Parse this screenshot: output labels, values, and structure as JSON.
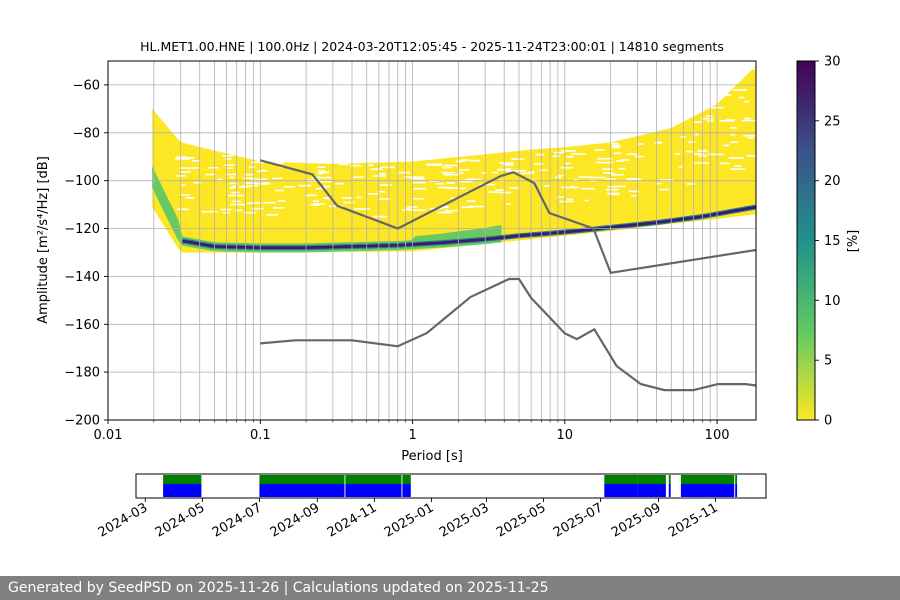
{
  "chart_data": {
    "type": "heatmap",
    "title": "HL.MET1.00.HNE | 100.0Hz | 2024-03-20T12:05:45 - 2025-11-24T23:00:01 | 14810 segments",
    "xlabel": "Period [s]",
    "ylabel": "Amplitude [m²/s⁴/Hz] [dB]",
    "x_scale": "log",
    "xlim": [
      0.01,
      180
    ],
    "ylim": [
      -200,
      -50
    ],
    "x_ticks": [
      {
        "value": 0.01,
        "label": "0.01"
      },
      {
        "value": 0.1,
        "label": "0.1"
      },
      {
        "value": 1,
        "label": "1"
      },
      {
        "value": 10,
        "label": "10"
      },
      {
        "value": 100,
        "label": "100"
      }
    ],
    "y_ticks": [
      {
        "value": -60,
        "label": "−60"
      },
      {
        "value": -80,
        "label": "−80"
      },
      {
        "value": -100,
        "label": "−100"
      },
      {
        "value": -120,
        "label": "−120"
      },
      {
        "value": -140,
        "label": "−140"
      },
      {
        "value": -160,
        "label": "−160"
      },
      {
        "value": -180,
        "label": "−180"
      },
      {
        "value": -200,
        "label": "−200"
      }
    ],
    "grid": true,
    "colorbar": {
      "label": "[%]",
      "colormap": "viridis_r",
      "range": [
        0,
        30
      ],
      "ticks": [
        {
          "value": 0,
          "label": "0"
        },
        {
          "value": 5,
          "label": "5"
        },
        {
          "value": 10,
          "label": "10"
        },
        {
          "value": 15,
          "label": "15"
        },
        {
          "value": 20,
          "label": "20"
        },
        {
          "value": 25,
          "label": "25"
        },
        {
          "value": 30,
          "label": "30"
        }
      ]
    },
    "psd_mode_curve": {
      "x": [
        0.0195,
        0.025,
        0.03,
        0.05,
        0.1,
        0.2,
        0.4,
        0.8,
        1.5,
        3,
        5,
        8,
        12,
        20,
        40,
        80,
        180
      ],
      "y": [
        -101,
        -115,
        -125,
        -127.5,
        -128,
        -128,
        -127.5,
        -127,
        -126,
        -124.5,
        -123,
        -122,
        -121,
        -119.5,
        -117.5,
        -115,
        -111
      ]
    },
    "psd_upper_envelope": {
      "x": [
        0.0195,
        0.03,
        0.1,
        0.3,
        1,
        3,
        6,
        10,
        20,
        50,
        100,
        180
      ],
      "y": [
        -70,
        -84,
        -92,
        -93,
        -92,
        -89,
        -87,
        -86,
        -84,
        -78,
        -68,
        -52
      ]
    },
    "psd_lower_envelope": {
      "x": [
        0.0195,
        0.03,
        0.1,
        1,
        5,
        10,
        20,
        50,
        100,
        180
      ],
      "y": [
        -111,
        -130,
        -130,
        -129.5,
        -125,
        -123,
        -121,
        -118,
        -116,
        -114
      ]
    },
    "noise_models": [
      {
        "name": "high_noise_model",
        "color": "#666666",
        "x": [
          0.1,
          0.22,
          0.32,
          0.8,
          3.8,
          4.6,
          6.3,
          7.9,
          15.4,
          20,
          354.8
        ],
        "y": [
          -91.5,
          -97.4,
          -110.5,
          -120,
          -98,
          -96.5,
          -101,
          -113.5,
          -120,
          -138.5,
          -126
        ]
      },
      {
        "name": "low_noise_model",
        "color": "#666666",
        "x": [
          0.1,
          0.17,
          0.4,
          0.8,
          1.24,
          2.4,
          4.3,
          5,
          6,
          10,
          12,
          15.6,
          21.9,
          31.6,
          45,
          70,
          101,
          154,
          180
        ],
        "y": [
          -168,
          -166.7,
          -166.7,
          -169.2,
          -163.7,
          -148.6,
          -141.1,
          -141.1,
          -149,
          -163.8,
          -166.2,
          -162.1,
          -177.5,
          -185,
          -187.5,
          -187.5,
          -185,
          -185,
          -185.6
        ]
      }
    ],
    "availability": {
      "type": "timeline",
      "dates": [
        "2024-03",
        "2024-05",
        "2024-07",
        "2024-09",
        "2024-11",
        "2025-01",
        "2025-03",
        "2025-05",
        "2025-07",
        "2025-09",
        "2025-11"
      ],
      "tick_labels": [
        "2024-03",
        "2024-05",
        "2024-07",
        "2024-09",
        "2024-11",
        "2025-01",
        "2025-03",
        "2025-05",
        "2025-07",
        "2025-09",
        "2025-11"
      ],
      "xlim": [
        "2024-02-20",
        "2025-12-25"
      ],
      "data_color": "#0000ff",
      "metadata_color": "#008000",
      "intervals": [
        {
          "start": "2024-03-20",
          "end": "2024-04-30"
        },
        {
          "start": "2024-07-01",
          "end": "2024-09-30"
        },
        {
          "start": "2024-10-01",
          "end": "2024-11-30"
        },
        {
          "start": "2024-12-01",
          "end": "2024-12-10"
        },
        {
          "start": "2025-07-05",
          "end": "2025-08-10"
        },
        {
          "start": "2025-08-10",
          "end": "2025-09-09"
        },
        {
          "start": "2025-09-12",
          "end": "2025-09-14"
        },
        {
          "start": "2025-09-25",
          "end": "2025-11-21"
        },
        {
          "start": "2025-11-22",
          "end": "2025-11-24"
        }
      ]
    }
  },
  "footer": {
    "text": "Generated by SeedPSD on 2025-11-26 | Calculations updated on 2025-11-25"
  }
}
